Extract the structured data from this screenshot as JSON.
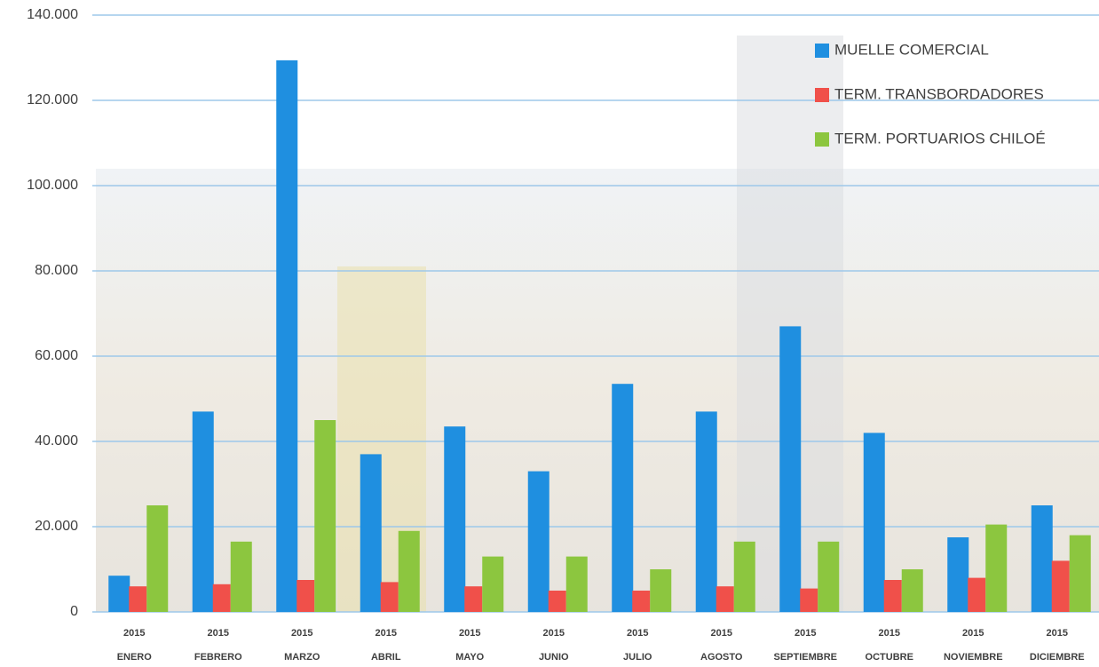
{
  "chart_data": {
    "type": "bar",
    "categories": [
      [
        "2015",
        "ENERO"
      ],
      [
        "2015",
        "FEBRERO"
      ],
      [
        "2015",
        "MARZO"
      ],
      [
        "2015",
        "ABRIL"
      ],
      [
        "2015",
        "MAYO"
      ],
      [
        "2015",
        "JUNIO"
      ],
      [
        "2015",
        "JULIO"
      ],
      [
        "2015",
        "AGOSTO"
      ],
      [
        "2015",
        "SEPTIEMBRE"
      ],
      [
        "2015",
        "OCTUBRE"
      ],
      [
        "2015",
        "NOVIEMBRE"
      ],
      [
        "2015",
        "DICIEMBRE"
      ]
    ],
    "series": [
      {
        "name": "MUELLE COMERCIAL",
        "color": "#1f8fe0",
        "values": [
          8500,
          47000,
          129400,
          37000,
          43500,
          33000,
          53500,
          47000,
          67000,
          42000,
          17500,
          25000
        ]
      },
      {
        "name": "TERM. TRANSBORDADORES",
        "color": "#f0504a",
        "values": [
          6000,
          6500,
          7500,
          7000,
          6000,
          5000,
          5000,
          6000,
          5500,
          7500,
          8000,
          12000
        ]
      },
      {
        "name": "TERM. PORTUARIOS CHILOÉ",
        "color": "#8cc63f",
        "values": [
          25000,
          16500,
          45000,
          19000,
          13000,
          13000,
          10000,
          16500,
          16500,
          10000,
          20500,
          18000
        ]
      }
    ],
    "ylim": [
      0,
      140000
    ],
    "yticks": [
      0,
      {
        "value": 20000,
        "label": "20.000"
      },
      {
        "value": 40000,
        "label": "40.000"
      },
      {
        "value": 60000,
        "label": "60.000"
      },
      {
        "value": 80000,
        "label": "80.000"
      },
      {
        "value": 100000,
        "label": "100.000"
      },
      {
        "value": 120000,
        "label": "120.000"
      },
      {
        "value": 140000,
        "label": "140.000"
      }
    ],
    "grid": true,
    "legend": "top-right"
  }
}
